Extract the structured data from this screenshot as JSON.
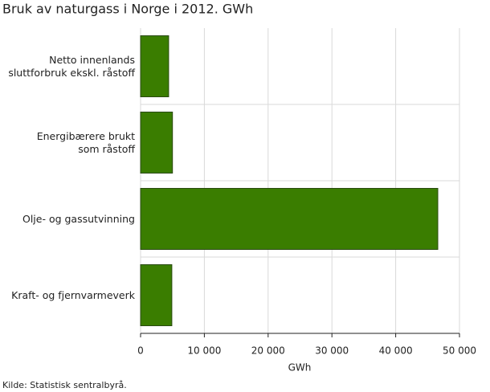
{
  "chart_data": {
    "type": "bar",
    "orientation": "horizontal",
    "title": "Bruk av naturgass i Norge i 2012. GWh",
    "categories": [
      "Netto innenlands\nsluttforbruk ekskl. råstoff",
      "Energibærere brukt\nsom råstoff",
      "Olje- og gassutvinning",
      "Kraft- og fjernvarmeverk"
    ],
    "values": [
      4400,
      5000,
      46600,
      4900
    ],
    "color": "#3a7d00",
    "xlabel": "GWh",
    "xlim": [
      0,
      50000
    ],
    "xticks": [
      0,
      {
        "value": 10000,
        "label": "10 000"
      },
      {
        "value": 20000,
        "label": "20 000"
      },
      {
        "value": 30000,
        "label": "30 000"
      },
      {
        "value": 40000,
        "label": "40 000"
      },
      {
        "value": 50000,
        "label": "50 000"
      }
    ],
    "grid": true,
    "source": "Kilde: Statistisk sentralbyrå."
  }
}
